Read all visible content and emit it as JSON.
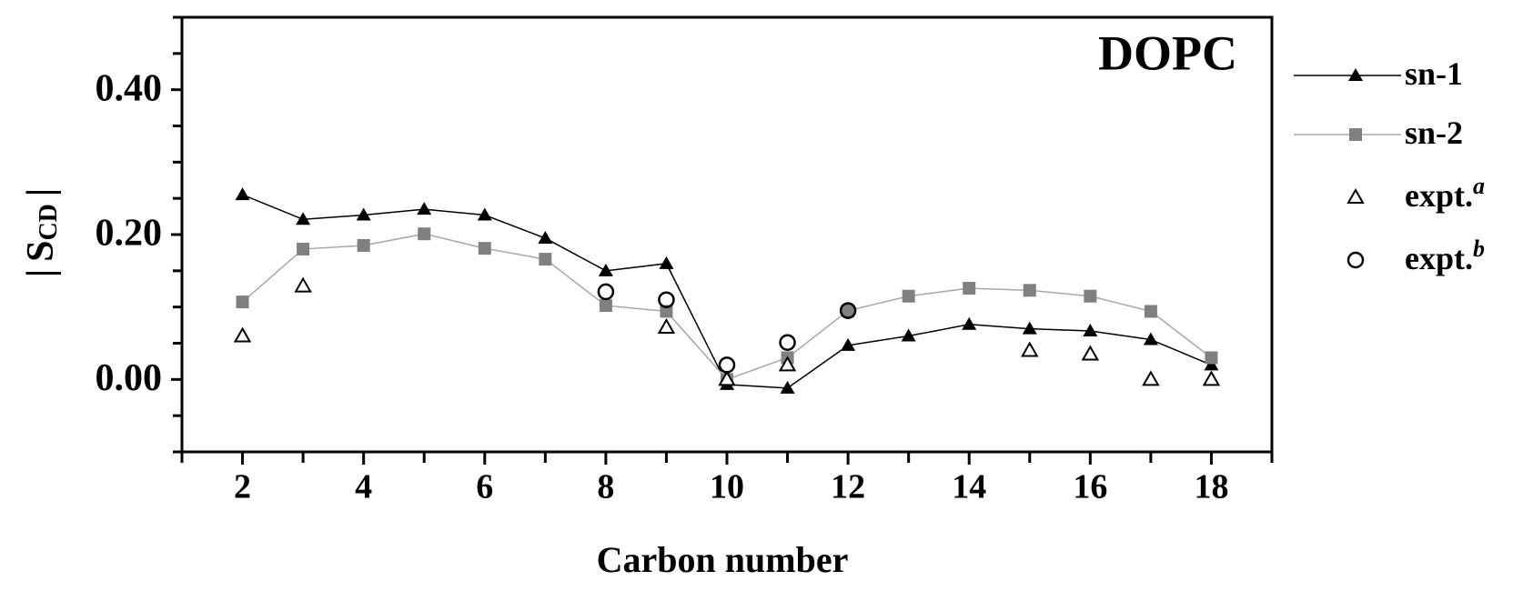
{
  "chart_data": {
    "type": "line",
    "title": "DOPC",
    "x_label": "Carbon number",
    "y_label": {
      "left": "|",
      "main": "S",
      "sub": "CD",
      "right": "|"
    },
    "x": [
      2,
      3,
      4,
      5,
      6,
      7,
      8,
      9,
      10,
      11,
      12,
      13,
      14,
      15,
      16,
      17,
      18
    ],
    "series": [
      {
        "name": "sn-1",
        "color": "#000000",
        "line": true,
        "marker": "triangle-filled",
        "values": [
          0.255,
          0.221,
          0.227,
          0.235,
          0.227,
          0.195,
          0.15,
          0.16,
          -0.007,
          -0.012,
          0.047,
          0.06,
          0.076,
          0.07,
          0.067,
          0.055,
          0.02
        ]
      },
      {
        "name": "sn-2",
        "color": "#808080",
        "line": true,
        "marker": "square-filled",
        "values": [
          0.107,
          0.18,
          0.185,
          0.201,
          0.181,
          0.166,
          0.102,
          0.094,
          0.0,
          0.03,
          0.095,
          0.115,
          0.126,
          0.123,
          0.115,
          0.094,
          0.03
        ]
      },
      {
        "name": "expt.",
        "name_sup": "a",
        "color": "#000000",
        "line": false,
        "marker": "triangle-open",
        "values": [
          0.06,
          0.129,
          null,
          null,
          null,
          null,
          null,
          0.072,
          0.0,
          0.02,
          null,
          null,
          null,
          0.04,
          0.035,
          0.0,
          0.0
        ]
      },
      {
        "name": "expt.",
        "name_sup": "b",
        "color": "#000000",
        "line": false,
        "marker": "circle-open",
        "values": [
          null,
          null,
          null,
          null,
          null,
          null,
          0.121,
          0.11,
          0.02,
          0.051,
          0.095,
          null,
          null,
          null,
          null,
          null,
          null
        ]
      }
    ],
    "xlim": [
      1,
      19
    ],
    "xticks": [
      2,
      4,
      6,
      8,
      10,
      12,
      14,
      16,
      18
    ],
    "xminorticks": [
      1,
      3,
      5,
      7,
      9,
      11,
      13,
      15,
      17,
      19
    ],
    "ylim": [
      -0.1,
      0.5
    ],
    "yticks": [
      {
        "value": 0,
        "label": "0.00"
      },
      {
        "value": 0.2,
        "label": "0.20"
      },
      {
        "value": 0.4,
        "label": "0.40"
      }
    ],
    "yminorticks": [
      -0.1,
      -0.05,
      0.05,
      0.1,
      0.15,
      0.25,
      0.3,
      0.35,
      0.45,
      0.5
    ],
    "legend": "outside-right"
  }
}
